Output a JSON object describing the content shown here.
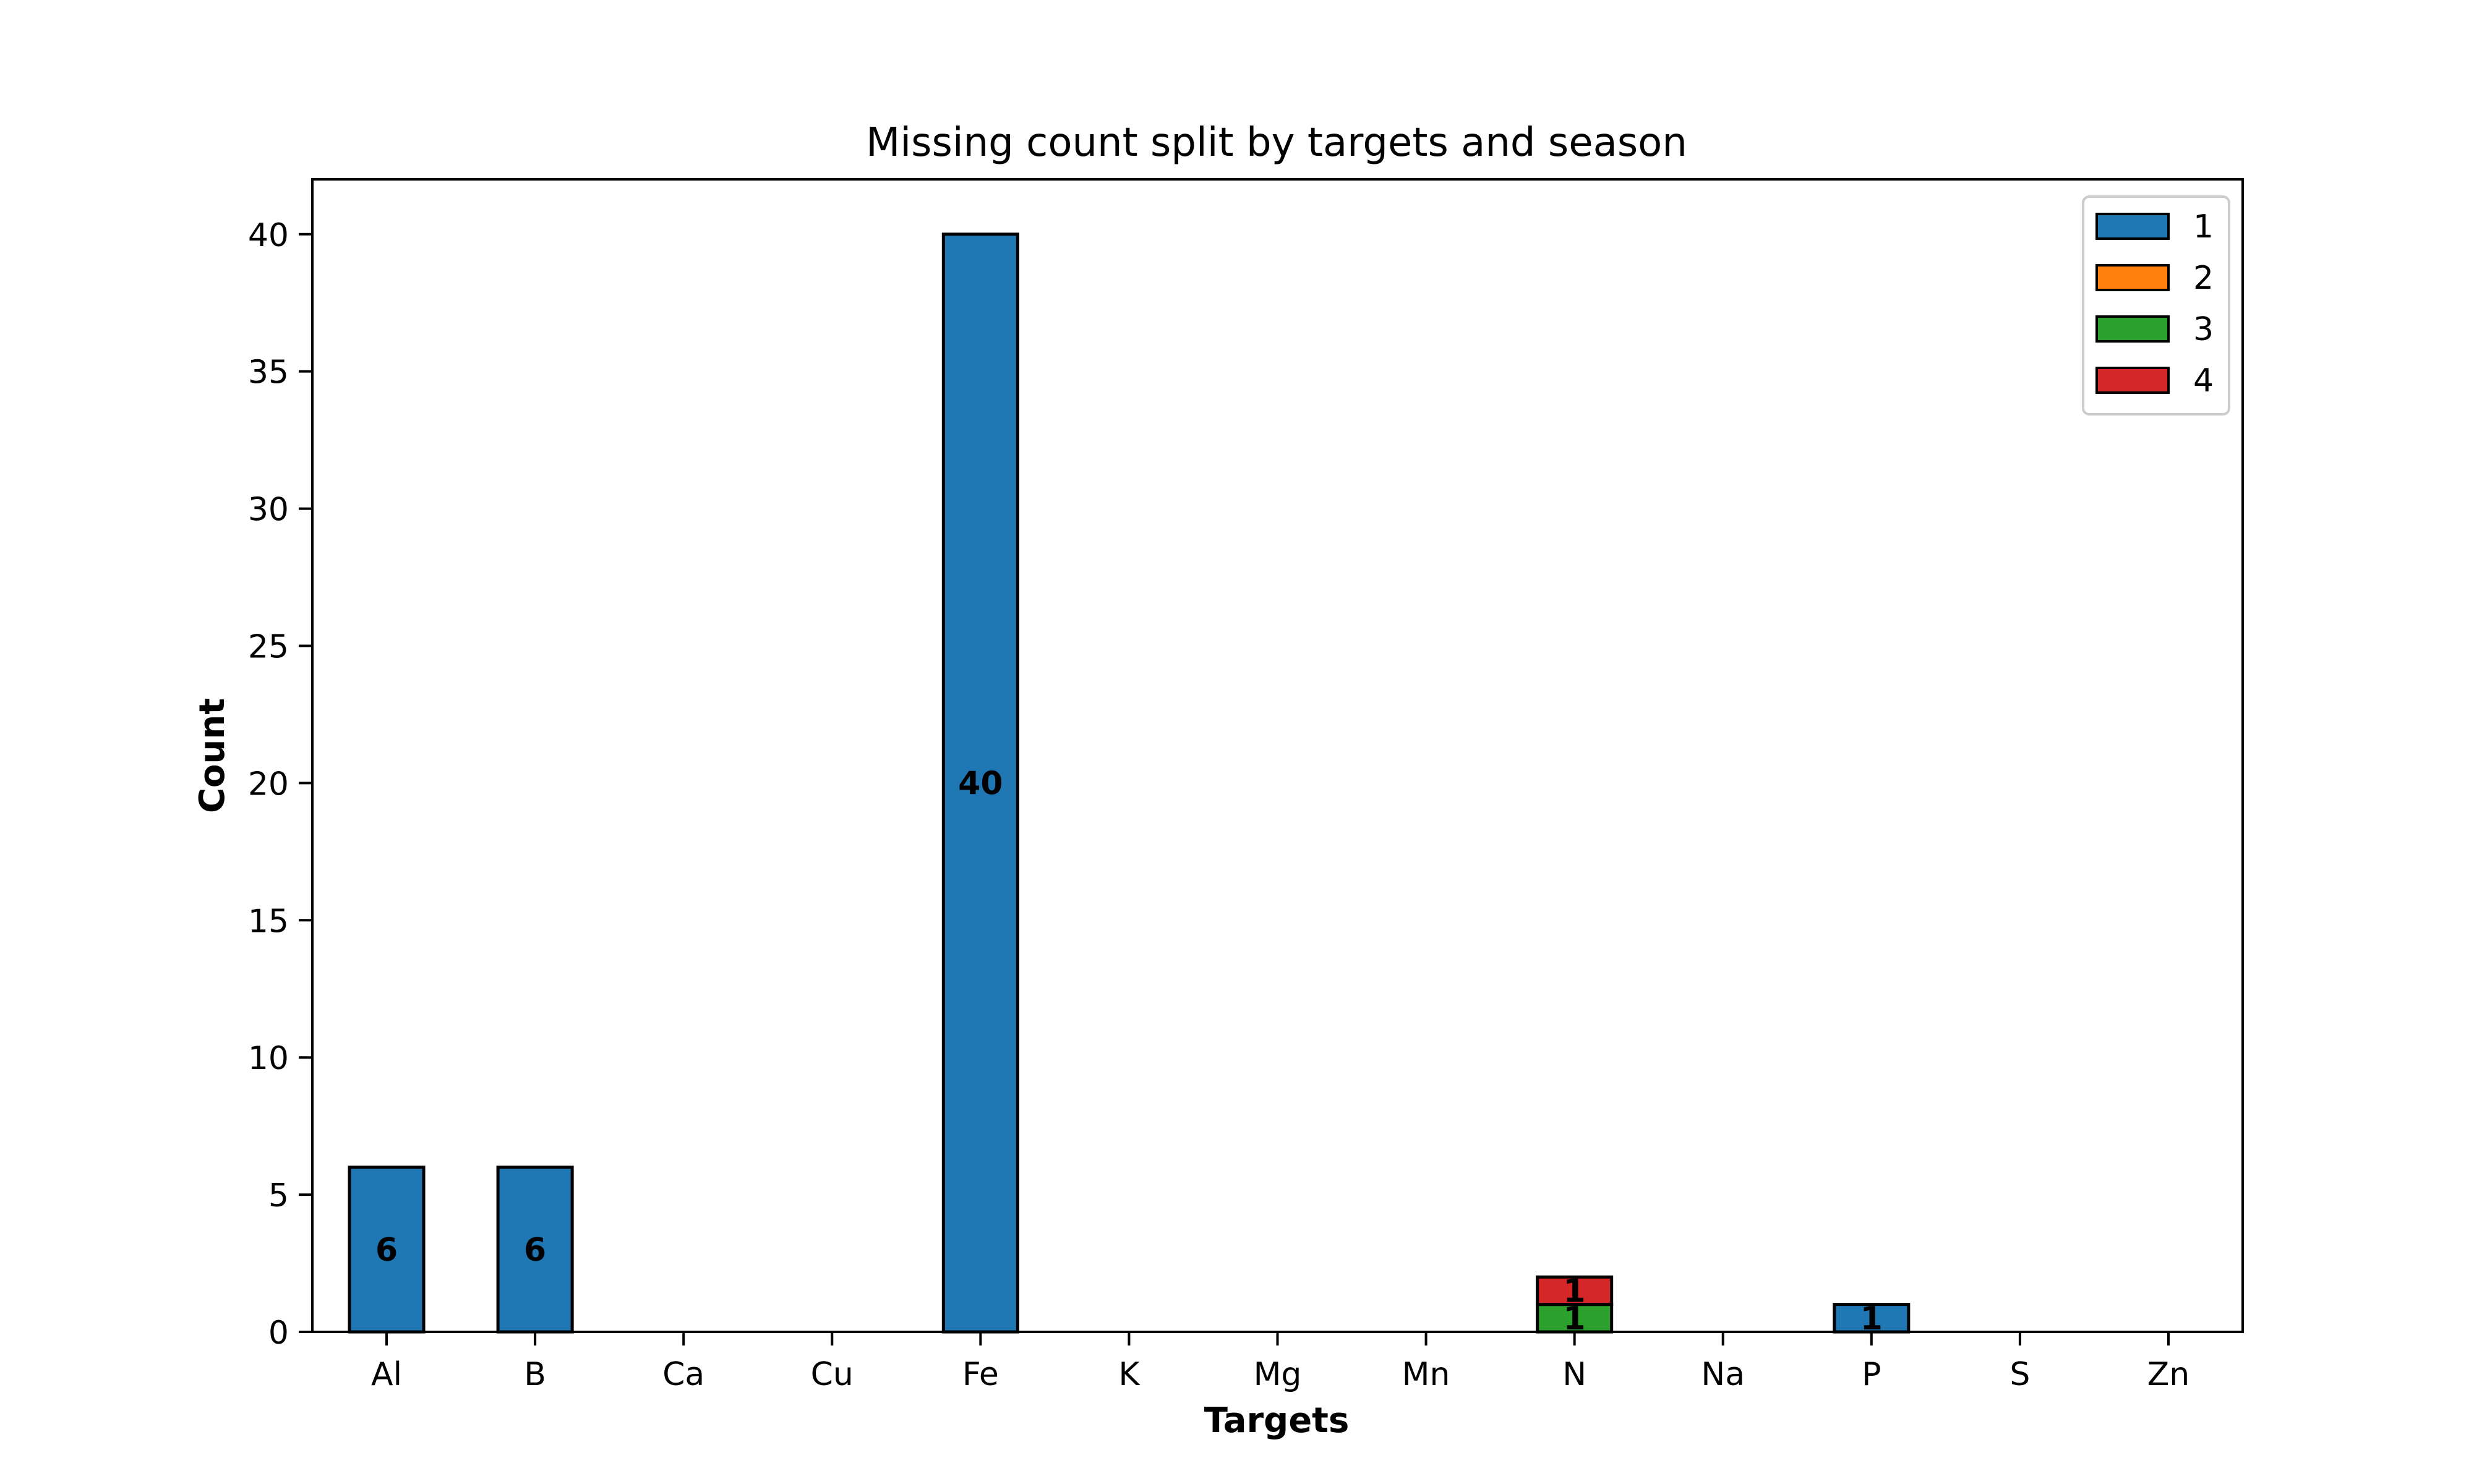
{
  "chart_data": {
    "type": "bar",
    "stacked": true,
    "title": "Missing count split by targets and season",
    "xlabel": "Targets",
    "ylabel": "Count",
    "ylim": [
      0,
      42
    ],
    "yticks": [
      0,
      5,
      10,
      15,
      20,
      25,
      30,
      35,
      40
    ],
    "categories": [
      "Al",
      "B",
      "Ca",
      "Cu",
      "Fe",
      "K",
      "Mg",
      "Mn",
      "N",
      "Na",
      "P",
      "S",
      "Zn"
    ],
    "series": [
      {
        "name": "1",
        "color": "#1f77b4",
        "values": [
          6,
          6,
          0,
          0,
          40,
          0,
          0,
          0,
          0,
          0,
          1,
          0,
          0
        ]
      },
      {
        "name": "2",
        "color": "#ff7f0e",
        "values": [
          0,
          0,
          0,
          0,
          0,
          0,
          0,
          0,
          0,
          0,
          0,
          0,
          0
        ]
      },
      {
        "name": "3",
        "color": "#2ca02c",
        "values": [
          0,
          0,
          0,
          0,
          0,
          0,
          0,
          0,
          1,
          0,
          0,
          0,
          0
        ]
      },
      {
        "name": "4",
        "color": "#d62728",
        "values": [
          0,
          0,
          0,
          0,
          0,
          0,
          0,
          0,
          1,
          0,
          0,
          0,
          0
        ]
      }
    ],
    "legend_position": "top-right",
    "grid": false
  }
}
